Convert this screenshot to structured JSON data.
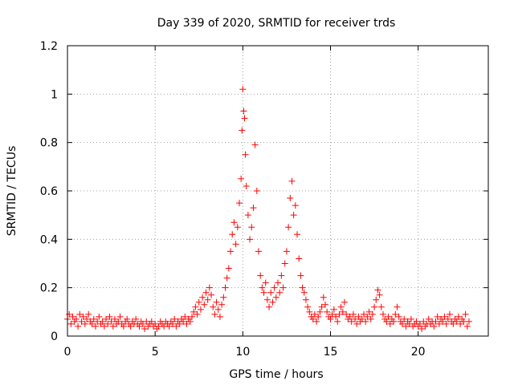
{
  "chart_data": {
    "type": "scatter",
    "title": "Day 339 of 2020, SRMTID for receiver trds",
    "xlabel": "GPS time / hours",
    "ylabel": "SRMTID / TECUs",
    "xlim": [
      0,
      24
    ],
    "ylim": [
      0,
      1.2
    ],
    "x_ticks": [
      0,
      5,
      10,
      15,
      20
    ],
    "x_tick_labels": [
      "0",
      "5",
      "10",
      "15",
      "20"
    ],
    "y_ticks": [
      0,
      0.2,
      0.4,
      0.6,
      0.8,
      1.0,
      1.2
    ],
    "y_tick_labels": [
      "0",
      "0.2",
      "0.4",
      "0.6",
      "0.8",
      "1",
      "1.2"
    ],
    "grid": true,
    "marker": "+",
    "series": [
      {
        "name": "SRMTID",
        "color": "#ff0000",
        "points": [
          [
            0.0,
            0.07
          ],
          [
            0.1,
            0.09
          ],
          [
            0.2,
            0.05
          ],
          [
            0.3,
            0.08
          ],
          [
            0.4,
            0.06
          ],
          [
            0.5,
            0.07
          ],
          [
            0.6,
            0.04
          ],
          [
            0.7,
            0.09
          ],
          [
            0.8,
            0.06
          ],
          [
            0.9,
            0.08
          ],
          [
            1.0,
            0.05
          ],
          [
            1.1,
            0.07
          ],
          [
            1.2,
            0.09
          ],
          [
            1.3,
            0.06
          ],
          [
            1.4,
            0.05
          ],
          [
            1.5,
            0.07
          ],
          [
            1.6,
            0.04
          ],
          [
            1.7,
            0.06
          ],
          [
            1.8,
            0.08
          ],
          [
            1.9,
            0.05
          ],
          [
            2.0,
            0.06
          ],
          [
            2.1,
            0.04
          ],
          [
            2.2,
            0.07
          ],
          [
            2.3,
            0.05
          ],
          [
            2.4,
            0.08
          ],
          [
            2.5,
            0.06
          ],
          [
            2.6,
            0.04
          ],
          [
            2.7,
            0.07
          ],
          [
            2.8,
            0.05
          ],
          [
            2.9,
            0.06
          ],
          [
            3.0,
            0.08
          ],
          [
            3.1,
            0.05
          ],
          [
            3.2,
            0.04
          ],
          [
            3.3,
            0.06
          ],
          [
            3.4,
            0.07
          ],
          [
            3.5,
            0.05
          ],
          [
            3.6,
            0.04
          ],
          [
            3.7,
            0.06
          ],
          [
            3.8,
            0.05
          ],
          [
            3.9,
            0.07
          ],
          [
            4.0,
            0.05
          ],
          [
            4.1,
            0.04
          ],
          [
            4.2,
            0.06
          ],
          [
            4.3,
            0.05
          ],
          [
            4.4,
            0.03
          ],
          [
            4.5,
            0.06
          ],
          [
            4.6,
            0.04
          ],
          [
            4.7,
            0.05
          ],
          [
            4.8,
            0.06
          ],
          [
            4.9,
            0.04
          ],
          [
            5.0,
            0.05
          ],
          [
            5.1,
            0.03
          ],
          [
            5.2,
            0.04
          ],
          [
            5.3,
            0.06
          ],
          [
            5.4,
            0.05
          ],
          [
            5.5,
            0.04
          ],
          [
            5.6,
            0.06
          ],
          [
            5.7,
            0.05
          ],
          [
            5.8,
            0.04
          ],
          [
            5.9,
            0.06
          ],
          [
            6.0,
            0.05
          ],
          [
            6.1,
            0.07
          ],
          [
            6.2,
            0.04
          ],
          [
            6.3,
            0.06
          ],
          [
            6.4,
            0.05
          ],
          [
            6.5,
            0.07
          ],
          [
            6.6,
            0.06
          ],
          [
            6.7,
            0.08
          ],
          [
            6.8,
            0.05
          ],
          [
            6.9,
            0.07
          ],
          [
            7.0,
            0.06
          ],
          [
            7.1,
            0.08
          ],
          [
            7.2,
            0.1
          ],
          [
            7.3,
            0.12
          ],
          [
            7.4,
            0.09
          ],
          [
            7.5,
            0.14
          ],
          [
            7.6,
            0.11
          ],
          [
            7.7,
            0.16
          ],
          [
            7.8,
            0.13
          ],
          [
            7.9,
            0.18
          ],
          [
            8.0,
            0.15
          ],
          [
            8.1,
            0.2
          ],
          [
            8.2,
            0.17
          ],
          [
            8.3,
            0.12
          ],
          [
            8.4,
            0.09
          ],
          [
            8.5,
            0.14
          ],
          [
            8.6,
            0.11
          ],
          [
            8.7,
            0.08
          ],
          [
            8.8,
            0.13
          ],
          [
            8.9,
            0.16
          ],
          [
            9.0,
            0.2
          ],
          [
            9.1,
            0.24
          ],
          [
            9.2,
            0.28
          ],
          [
            9.3,
            0.35
          ],
          [
            9.4,
            0.42
          ],
          [
            9.5,
            0.47
          ],
          [
            9.6,
            0.38
          ],
          [
            9.7,
            0.45
          ],
          [
            9.8,
            0.55
          ],
          [
            9.9,
            0.65
          ],
          [
            9.95,
            0.85
          ],
          [
            10.0,
            1.02
          ],
          [
            10.05,
            0.93
          ],
          [
            10.1,
            0.9
          ],
          [
            10.15,
            0.75
          ],
          [
            10.2,
            0.62
          ],
          [
            10.3,
            0.5
          ],
          [
            10.4,
            0.4
          ],
          [
            10.5,
            0.45
          ],
          [
            10.6,
            0.53
          ],
          [
            10.7,
            0.79
          ],
          [
            10.8,
            0.6
          ],
          [
            10.9,
            0.35
          ],
          [
            11.0,
            0.25
          ],
          [
            11.1,
            0.2
          ],
          [
            11.2,
            0.18
          ],
          [
            11.3,
            0.22
          ],
          [
            11.4,
            0.15
          ],
          [
            11.5,
            0.12
          ],
          [
            11.6,
            0.18
          ],
          [
            11.7,
            0.14
          ],
          [
            11.8,
            0.2
          ],
          [
            11.9,
            0.16
          ],
          [
            12.0,
            0.22
          ],
          [
            12.1,
            0.18
          ],
          [
            12.2,
            0.25
          ],
          [
            12.3,
            0.2
          ],
          [
            12.4,
            0.3
          ],
          [
            12.5,
            0.35
          ],
          [
            12.6,
            0.45
          ],
          [
            12.7,
            0.57
          ],
          [
            12.8,
            0.64
          ],
          [
            12.9,
            0.5
          ],
          [
            13.0,
            0.54
          ],
          [
            13.1,
            0.42
          ],
          [
            13.2,
            0.32
          ],
          [
            13.3,
            0.25
          ],
          [
            13.4,
            0.2
          ],
          [
            13.5,
            0.18
          ],
          [
            13.6,
            0.15
          ],
          [
            13.7,
            0.12
          ],
          [
            13.8,
            0.1
          ],
          [
            13.9,
            0.08
          ],
          [
            14.0,
            0.07
          ],
          [
            14.1,
            0.09
          ],
          [
            14.2,
            0.06
          ],
          [
            14.3,
            0.08
          ],
          [
            14.4,
            0.1
          ],
          [
            14.5,
            0.12
          ],
          [
            14.6,
            0.16
          ],
          [
            14.7,
            0.13
          ],
          [
            14.8,
            0.1
          ],
          [
            14.9,
            0.08
          ],
          [
            15.0,
            0.07
          ],
          [
            15.1,
            0.09
          ],
          [
            15.2,
            0.11
          ],
          [
            15.3,
            0.08
          ],
          [
            15.4,
            0.06
          ],
          [
            15.5,
            0.09
          ],
          [
            15.6,
            0.12
          ],
          [
            15.7,
            0.1
          ],
          [
            15.8,
            0.14
          ],
          [
            15.9,
            0.09
          ],
          [
            16.0,
            0.07
          ],
          [
            16.1,
            0.08
          ],
          [
            16.2,
            0.06
          ],
          [
            16.3,
            0.09
          ],
          [
            16.4,
            0.07
          ],
          [
            16.5,
            0.05
          ],
          [
            16.6,
            0.08
          ],
          [
            16.7,
            0.06
          ],
          [
            16.8,
            0.07
          ],
          [
            16.9,
            0.09
          ],
          [
            17.0,
            0.06
          ],
          [
            17.1,
            0.08
          ],
          [
            17.2,
            0.1
          ],
          [
            17.3,
            0.07
          ],
          [
            17.4,
            0.09
          ],
          [
            17.5,
            0.12
          ],
          [
            17.6,
            0.15
          ],
          [
            17.7,
            0.19
          ],
          [
            17.8,
            0.17
          ],
          [
            17.9,
            0.12
          ],
          [
            18.0,
            0.09
          ],
          [
            18.1,
            0.07
          ],
          [
            18.2,
            0.06
          ],
          [
            18.3,
            0.08
          ],
          [
            18.4,
            0.05
          ],
          [
            18.5,
            0.07
          ],
          [
            18.6,
            0.06
          ],
          [
            18.7,
            0.09
          ],
          [
            18.8,
            0.12
          ],
          [
            18.9,
            0.08
          ],
          [
            19.0,
            0.06
          ],
          [
            19.1,
            0.05
          ],
          [
            19.2,
            0.07
          ],
          [
            19.3,
            0.04
          ],
          [
            19.4,
            0.06
          ],
          [
            19.5,
            0.05
          ],
          [
            19.6,
            0.07
          ],
          [
            19.7,
            0.04
          ],
          [
            19.8,
            0.05
          ],
          [
            19.9,
            0.06
          ],
          [
            20.0,
            0.04
          ],
          [
            20.1,
            0.05
          ],
          [
            20.2,
            0.03
          ],
          [
            20.3,
            0.06
          ],
          [
            20.4,
            0.04
          ],
          [
            20.5,
            0.05
          ],
          [
            20.6,
            0.07
          ],
          [
            20.7,
            0.05
          ],
          [
            20.8,
            0.06
          ],
          [
            20.9,
            0.04
          ],
          [
            21.0,
            0.06
          ],
          [
            21.1,
            0.08
          ],
          [
            21.2,
            0.05
          ],
          [
            21.3,
            0.07
          ],
          [
            21.4,
            0.06
          ],
          [
            21.5,
            0.08
          ],
          [
            21.6,
            0.05
          ],
          [
            21.7,
            0.07
          ],
          [
            21.8,
            0.09
          ],
          [
            21.9,
            0.06
          ],
          [
            22.0,
            0.05
          ],
          [
            22.1,
            0.07
          ],
          [
            22.2,
            0.06
          ],
          [
            22.3,
            0.08
          ],
          [
            22.4,
            0.05
          ],
          [
            22.5,
            0.07
          ],
          [
            22.6,
            0.06
          ],
          [
            22.7,
            0.09
          ],
          [
            22.8,
            0.04
          ],
          [
            22.9,
            0.06
          ]
        ]
      }
    ]
  }
}
